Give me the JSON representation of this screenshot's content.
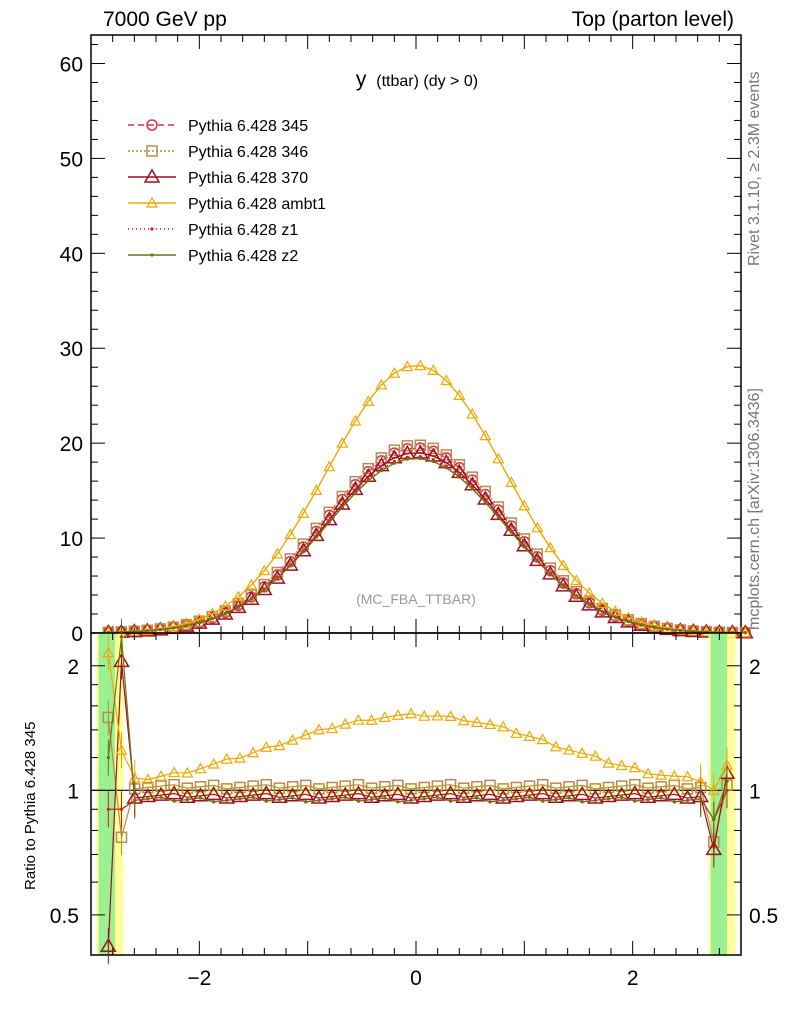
{
  "header": {
    "left": "7000 GeV pp",
    "right": "Top (parton level)"
  },
  "side_labels": {
    "rivet": "Rivet 3.1.10, ≥ 2.3M events",
    "mcplots": "mcplots.cern.ch [arXiv:1306.3436]"
  },
  "colors": {
    "p345": "#d6334a",
    "p346": "#b98a50",
    "p370": "#a01020",
    "ambt1": "#f0a800",
    "z1": "#dd1a10",
    "z2": "#707010",
    "band_green": "#90ee90",
    "band_yellow": "#ffff90"
  },
  "chart_data": [
    {
      "type": "line",
      "title": "y (ttbar) (dy > 0)",
      "title_main": "y",
      "title_sub": "(ttbar) (dy > 0)",
      "watermark": "(MC_FBA_TTBAR)",
      "xlim": [
        -3,
        3
      ],
      "ylim": [
        0,
        63
      ],
      "yticks": [
        "0",
        "10",
        "20",
        "30",
        "40",
        "50",
        "60"
      ],
      "legend_position": "top-left",
      "series": [
        {
          "name": "Pythia 6.428 345",
          "key": "p345",
          "marker": "circle",
          "peak": 19.5,
          "sigma": 0.84,
          "dash": "6,4"
        },
        {
          "name": "Pythia 6.428 346",
          "key": "p346",
          "marker": "square",
          "peak": 19.8,
          "sigma": 0.85,
          "dash": "2,2"
        },
        {
          "name": "Pythia 6.428 370",
          "key": "p370",
          "marker": "triangle",
          "peak": 19.0,
          "sigma": 0.83,
          "dash": ""
        },
        {
          "name": "Pythia 6.428 ambt1",
          "key": "ambt1",
          "marker": "triangle-small",
          "peak": 28.2,
          "sigma": 0.82,
          "dash": ""
        },
        {
          "name": "Pythia 6.428 z1",
          "key": "z1",
          "marker": "dot",
          "peak": 18.6,
          "sigma": 0.84,
          "dash": "1,3"
        },
        {
          "name": "Pythia 6.428 z2",
          "key": "z2",
          "marker": "dot",
          "peak": 18.4,
          "sigma": 0.84,
          "dash": ""
        }
      ]
    },
    {
      "type": "line",
      "ylabel": "Ratio to Pythia 6.428 345",
      "xlim": [
        -3,
        3
      ],
      "ylim": [
        0.4,
        2.4
      ],
      "yscale": "log",
      "yticks": [
        "0.5",
        "1",
        "2"
      ],
      "xticks": [
        "−2",
        "0",
        "2"
      ],
      "series": [
        {
          "name": "Pythia 6.428 346",
          "key": "p346",
          "level": 1.02
        },
        {
          "name": "Pythia 6.428 370",
          "key": "p370",
          "level": 0.97
        },
        {
          "name": "Pythia 6.428 ambt1",
          "key": "ambt1",
          "level": 1.0,
          "peak": 1.5
        },
        {
          "name": "Pythia 6.428 z1",
          "key": "z1",
          "level": 0.95
        },
        {
          "name": "Pythia 6.428 z2",
          "key": "z2",
          "level": 0.95
        }
      ],
      "edge_values": {
        "p346": [
          1.5,
          0.77,
          0.75,
          1.03
        ],
        "p370": [
          0.42,
          2.05,
          0.72,
          1.1
        ],
        "ambt1": [
          2.15,
          1.25,
          1.0,
          1.15
        ],
        "z1": [
          0.9,
          0.9,
          0.85,
          1.0
        ],
        "z2": [
          1.2,
          2.35,
          0.85,
          1.05
        ]
      }
    }
  ]
}
